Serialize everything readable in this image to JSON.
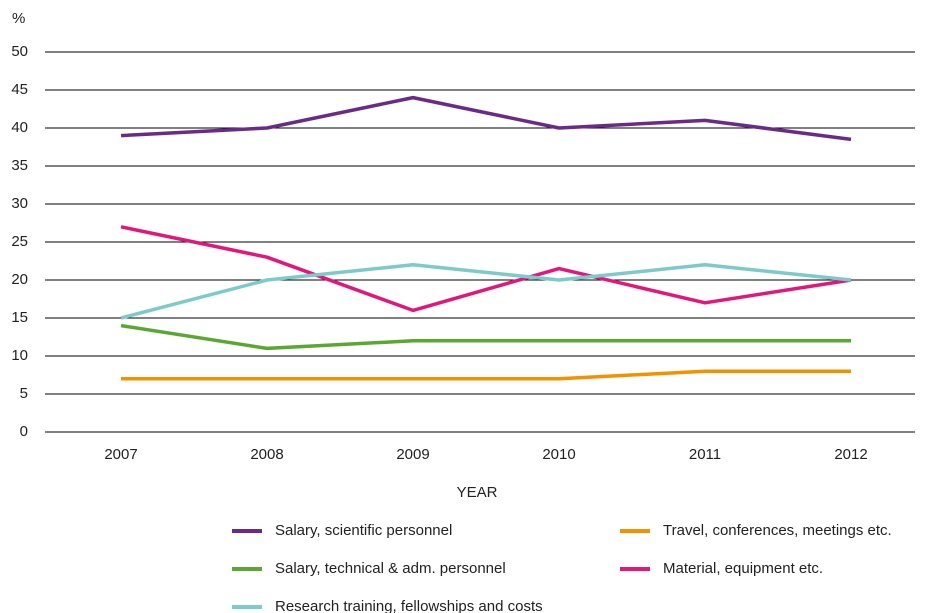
{
  "chart_data": {
    "type": "line",
    "y_label": "%",
    "x_label": "YEAR",
    "categories": [
      "2007",
      "2008",
      "2009",
      "2010",
      "2011",
      "2012"
    ],
    "series": [
      {
        "name": "Salary, scientific personnel",
        "color": "#6b2a87",
        "values": [
          39,
          40,
          44,
          40,
          41,
          38.5
        ]
      },
      {
        "name": "Travel, conferences, meetings etc.",
        "color": "#f39200",
        "values": [
          7,
          7,
          7,
          7,
          8,
          8
        ]
      },
      {
        "name": "Salary, technical & adm. personnel",
        "color": "#5aa832",
        "values": [
          14,
          11,
          12,
          12,
          12,
          12
        ]
      },
      {
        "name": "Material, equipment etc.",
        "color": "#e2177b",
        "values": [
          27,
          23,
          16,
          21.5,
          17,
          20
        ]
      },
      {
        "name": "Research training, fellowships and costs",
        "color": "#7ccaca",
        "values": [
          15,
          20,
          22,
          20,
          22,
          20
        ]
      }
    ],
    "ylim": [
      0,
      50
    ],
    "yticks": [
      0,
      5,
      10,
      15,
      20,
      25,
      30,
      35,
      40,
      45,
      50
    ],
    "grid": true
  }
}
